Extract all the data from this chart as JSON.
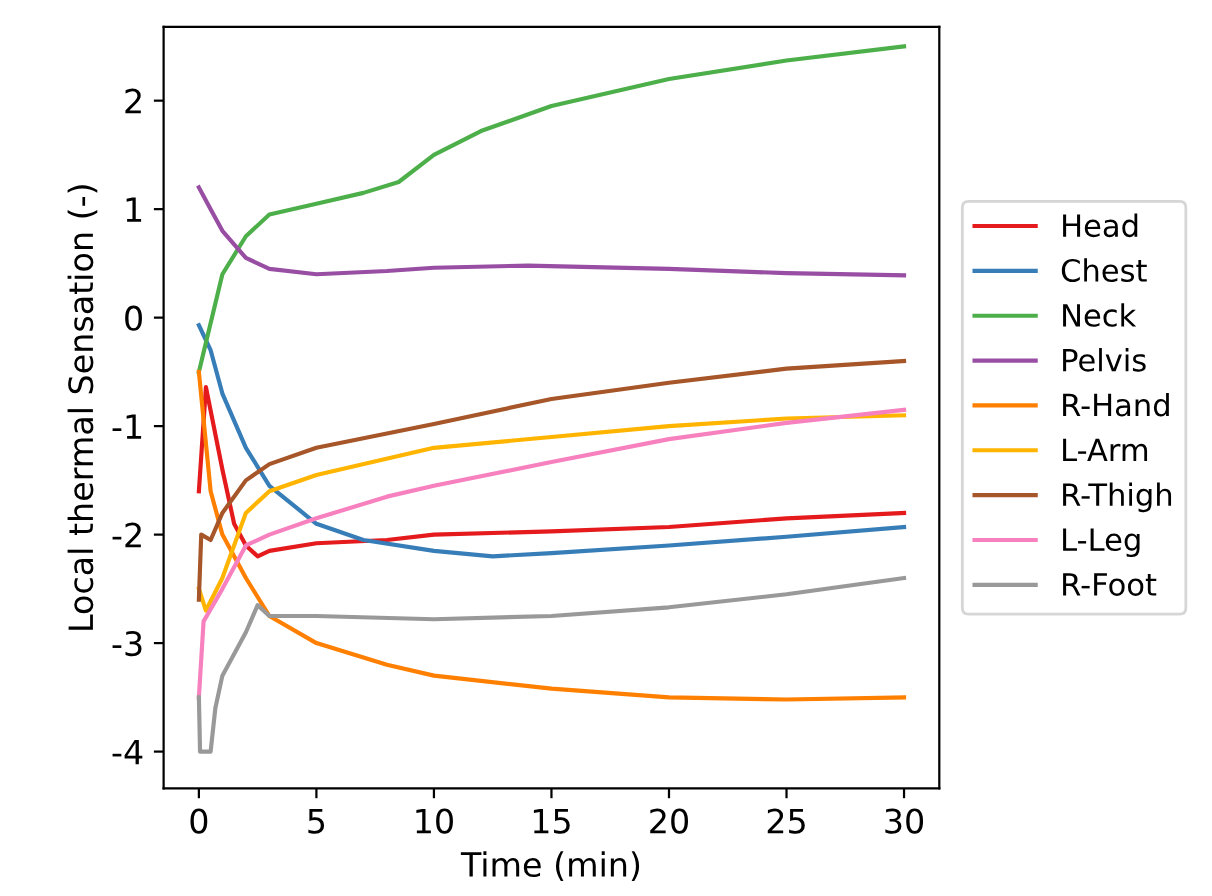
{
  "chart_data": {
    "type": "line",
    "xlabel": "Time (min)",
    "ylabel": "Local thermal Sensation (-)",
    "xlim": [
      -1.5,
      31.5
    ],
    "xticks": [
      0,
      5,
      10,
      15,
      20,
      25,
      30
    ],
    "ylim": [
      -4.34,
      2.68
    ],
    "yticks": [
      -4,
      -3,
      -2,
      -1,
      0,
      1,
      2
    ],
    "legend": "right",
    "grid": false,
    "series": [
      {
        "name": "Head",
        "color": "#e41a1c",
        "x": [
          0,
          0.3,
          1,
          1.5,
          2,
          2.5,
          3,
          5,
          8,
          10,
          15,
          20,
          25,
          30
        ],
        "values": [
          -1.6,
          -0.64,
          -1.4,
          -1.9,
          -2.1,
          -2.2,
          -2.15,
          -2.08,
          -2.05,
          -2.0,
          -1.97,
          -1.93,
          -1.85,
          -1.8
        ]
      },
      {
        "name": "Chest",
        "color": "#377eb8",
        "x": [
          0,
          0.5,
          1,
          2,
          3,
          5,
          7,
          10,
          12.5,
          15,
          20,
          25,
          30
        ],
        "values": [
          -0.07,
          -0.3,
          -0.7,
          -1.2,
          -1.55,
          -1.9,
          -2.05,
          -2.15,
          -2.2,
          -2.17,
          -2.1,
          -2.02,
          -1.93
        ]
      },
      {
        "name": "Neck",
        "color": "#4daf4a",
        "x": [
          0,
          1,
          2,
          3,
          5,
          7,
          8.5,
          10,
          12,
          15,
          20,
          25,
          30
        ],
        "values": [
          -0.5,
          0.4,
          0.75,
          0.95,
          1.05,
          1.15,
          1.25,
          1.5,
          1.72,
          1.95,
          2.2,
          2.37,
          2.5
        ]
      },
      {
        "name": "Pelvis",
        "color": "#984ea3",
        "x": [
          0,
          0.5,
          1,
          2,
          3,
          5,
          8,
          10,
          14,
          20,
          25,
          30
        ],
        "values": [
          1.2,
          1.0,
          0.8,
          0.55,
          0.45,
          0.4,
          0.43,
          0.46,
          0.48,
          0.45,
          0.41,
          0.39
        ]
      },
      {
        "name": "R-Hand",
        "color": "#ff7f00",
        "x": [
          0,
          0.5,
          1,
          2,
          3,
          5,
          8,
          10,
          15,
          20,
          25,
          30
        ],
        "values": [
          -0.5,
          -1.6,
          -2.0,
          -2.4,
          -2.75,
          -3.0,
          -3.2,
          -3.3,
          -3.42,
          -3.5,
          -3.52,
          -3.5
        ]
      },
      {
        "name": "L-Arm",
        "color": "#ffb400",
        "x": [
          0,
          0.3,
          1,
          2,
          3,
          5,
          10,
          15,
          20,
          25,
          30
        ],
        "values": [
          -2.5,
          -2.7,
          -2.4,
          -1.8,
          -1.6,
          -1.45,
          -1.2,
          -1.1,
          -1.0,
          -0.93,
          -0.9
        ]
      },
      {
        "name": "R-Thigh",
        "color": "#a65628",
        "x": [
          0,
          0.1,
          0.5,
          1,
          2,
          3,
          5,
          10,
          15,
          20,
          25,
          30
        ],
        "values": [
          -2.6,
          -2.0,
          -2.05,
          -1.8,
          -1.5,
          -1.35,
          -1.2,
          -0.98,
          -0.75,
          -0.6,
          -0.47,
          -0.4
        ]
      },
      {
        "name": "L-Leg",
        "color": "#f781bf",
        "x": [
          0,
          0.2,
          1,
          2,
          3,
          5,
          8,
          10,
          15,
          20,
          25,
          30
        ],
        "values": [
          -3.5,
          -2.8,
          -2.5,
          -2.1,
          -2.0,
          -1.85,
          -1.65,
          -1.55,
          -1.33,
          -1.12,
          -0.97,
          -0.85
        ]
      },
      {
        "name": "R-Foot",
        "color": "#999999",
        "x": [
          0,
          0.05,
          0.5,
          0.7,
          1,
          2,
          2.5,
          3,
          5,
          10,
          15,
          20,
          25,
          30
        ],
        "values": [
          -3.5,
          -4.0,
          -4.0,
          -3.6,
          -3.3,
          -2.9,
          -2.65,
          -2.75,
          -2.75,
          -2.78,
          -2.75,
          -2.67,
          -2.55,
          -2.4
        ]
      }
    ]
  }
}
